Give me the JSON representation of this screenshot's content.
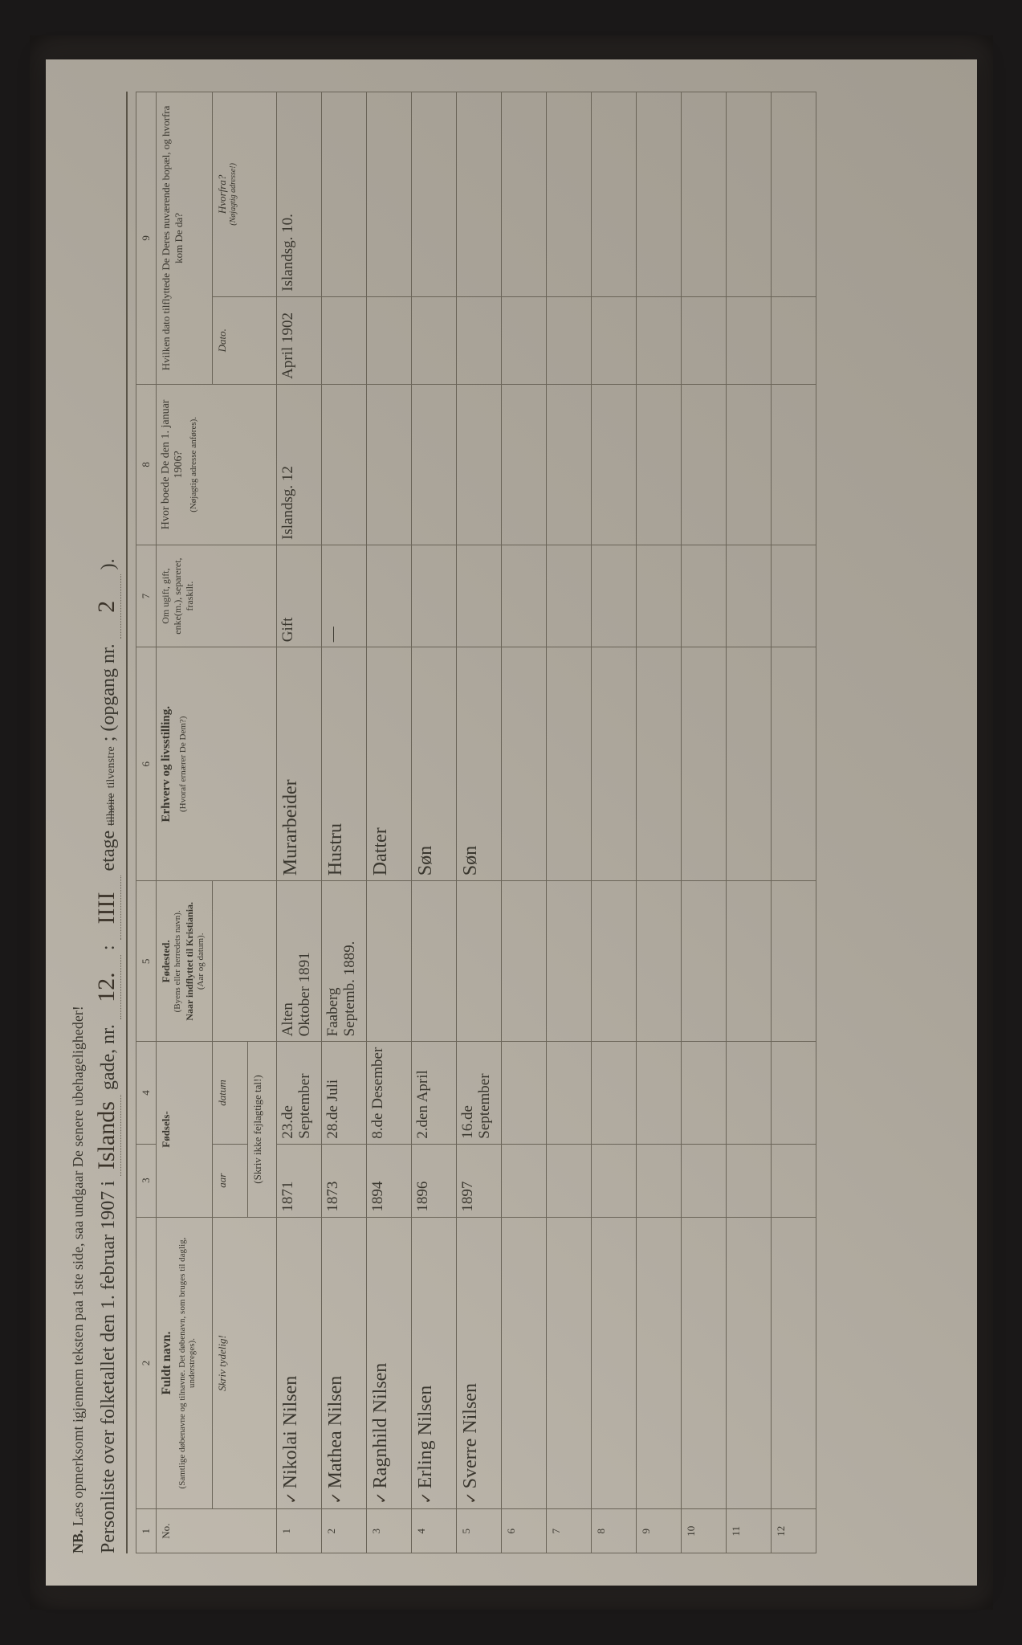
{
  "nb": {
    "prefix": "NB.",
    "text": "Læs opmerksomt igjennem teksten paa 1ste side, saa undgaar De senere ubehageligheder!"
  },
  "title": {
    "lead": "Personliste over folketallet den 1. februar 1907 i",
    "street": "Islands",
    "gade": "gade, nr.",
    "nr": "12.",
    "etage_sep": ":",
    "etage_hand": "IIII",
    "etage_word": "etage",
    "side_struck": "tilhøire",
    "side": "tilvenstre",
    "side_sep": ";",
    "opgang_label": "(opgang nr.",
    "opgang": "2",
    "close": ")."
  },
  "colnums": [
    "1",
    "2",
    "3",
    "4",
    "5",
    "6",
    "7",
    "8",
    "9"
  ],
  "headers": {
    "c1": "No.",
    "c2": "Fuldt navn.",
    "c2_sub": "(Samtlige døbenavne og tilnavne. Det døbenavn, som bruges til daglig, understreges).",
    "c2_sub2": "Skriv tydelig!",
    "c34": "Fødsels-",
    "c3": "aar",
    "c4": "datum",
    "c34_sub": "(Skriv ikke fejlagtige tal!)",
    "c5": "Fødested.",
    "c5_sub1": "(Byens eller herredets navn).",
    "c5_sub2": "Naar indflyttet til Kristiania.",
    "c5_sub3": "(Aar og datum).",
    "c6": "Erhverv og livsstilling.",
    "c6_sub": "(Hvoraf ernærer De Dem?)",
    "c7": "Om ugift, gift, enke(m.), separeret, fraskilt.",
    "c8": "Hvor boede De den 1. januar 1906?",
    "c8_sub": "(Nøjagtig adresse anføres).",
    "c9": "Hvilken dato tilflyttede De Deres nuværende bopæl, og hvorfra kom De da?",
    "c9a": "Dato.",
    "c9b": "Hvorfra?",
    "c9b_sub": "(Nøjagtig adresse!)"
  },
  "rows": [
    {
      "n": "1",
      "name": "Nikolai Nilsen",
      "year": "1871",
      "date": "23.de September",
      "birthplace": "Alten\nOktober 1891",
      "occupation": "Murarbeider",
      "marital": "Gift",
      "addr1906": "Islandsg. 12",
      "movedate": "April 1902",
      "movefrom": "Islandsg. 10."
    },
    {
      "n": "2",
      "name": "Mathea Nilsen",
      "year": "1873",
      "date": "28.de Juli",
      "birthplace": "Faaberg\nSeptemb. 1889.",
      "occupation": "Hustru",
      "marital": "—",
      "addr1906": "",
      "movedate": "",
      "movefrom": ""
    },
    {
      "n": "3",
      "name": "Ragnhild Nilsen",
      "year": "1894",
      "date": "8.de Desember",
      "birthplace": "",
      "occupation": "Datter",
      "marital": "",
      "addr1906": "",
      "movedate": "",
      "movefrom": ""
    },
    {
      "n": "4",
      "name": "Erling Nilsen",
      "year": "1896",
      "date": "2.den April",
      "birthplace": "",
      "occupation": "Søn",
      "marital": "",
      "addr1906": "",
      "movedate": "",
      "movefrom": ""
    },
    {
      "n": "5",
      "name": "Sverre Nilsen",
      "year": "1897",
      "date": "16.de September",
      "birthplace": "",
      "occupation": "Søn",
      "marital": "",
      "addr1906": "",
      "movedate": "",
      "movefrom": ""
    }
  ],
  "empty_rows": [
    "6",
    "7",
    "8",
    "9",
    "10",
    "11",
    "12"
  ],
  "style": {
    "paper_bg": "#b5afa4",
    "ink": "#3a3228",
    "rule": "#6a6458",
    "print": "#3a372f"
  }
}
